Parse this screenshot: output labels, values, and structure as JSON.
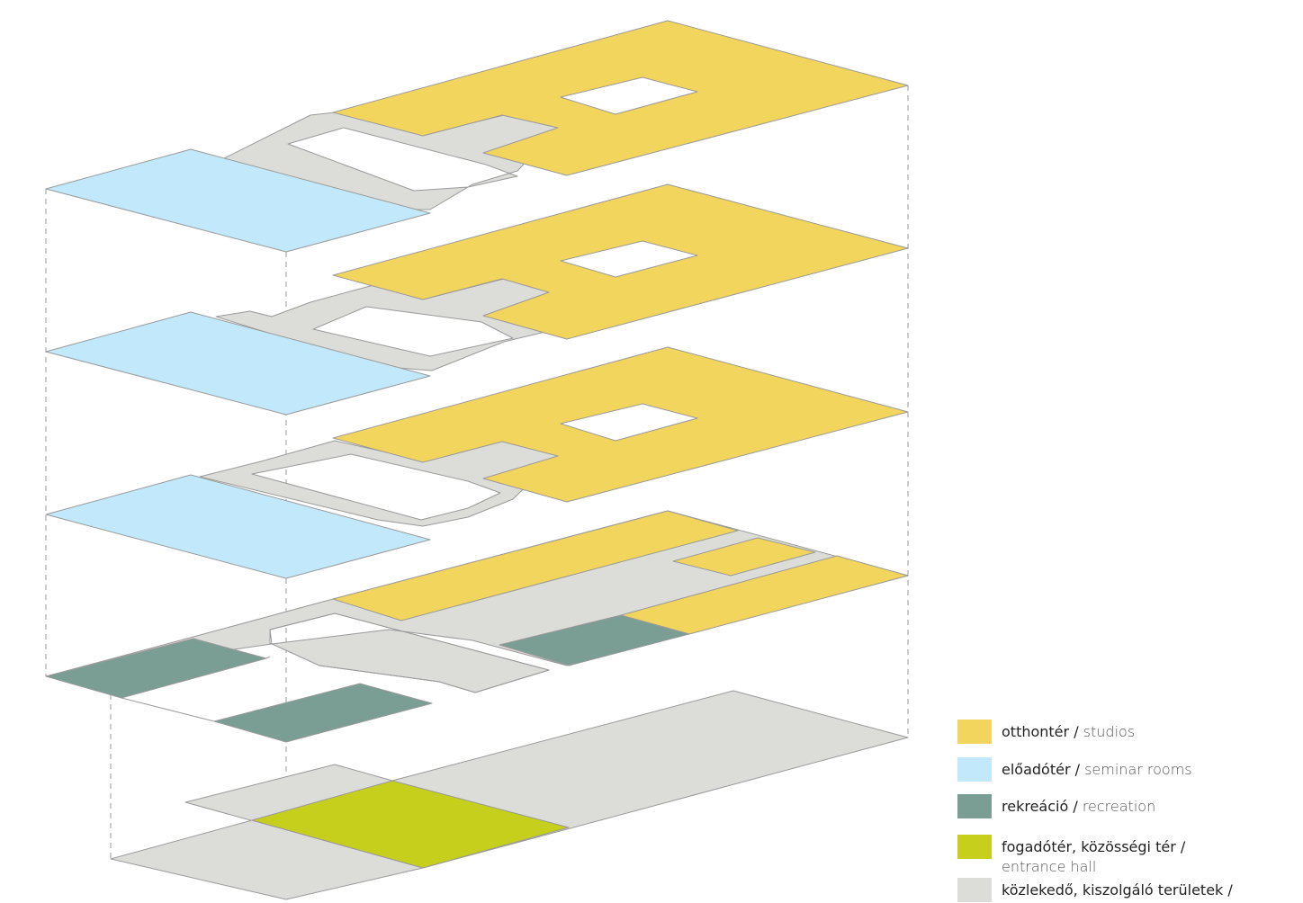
{
  "colors": {
    "studios": "#F2D55C",
    "seminar_rooms": "#C2E9FB",
    "recreation": "#7A9E94",
    "entrance_hall": "#C6CF1B",
    "circulation": "#DCDCD8",
    "outline": "#9A9A9A",
    "guide": "#AAAAAA"
  },
  "legend": {
    "items": [
      {
        "key": "studios",
        "label_hu": "otthontér / ",
        "label_en": "studios"
      },
      {
        "key": "seminar_rooms",
        "label_hu": "előadótér / ",
        "label_en": "seminar rooms"
      },
      {
        "key": "recreation",
        "label_hu": "rekreáció / ",
        "label_en": "recreation"
      },
      {
        "key": "entrance_hall",
        "label_hu": "fogadótér, közösségi tér / ",
        "label_en": "entrance hall"
      },
      {
        "key": "circulation",
        "label_hu": "közlekedő, kiszolgáló területek / ",
        "label_en": ""
      }
    ]
  }
}
